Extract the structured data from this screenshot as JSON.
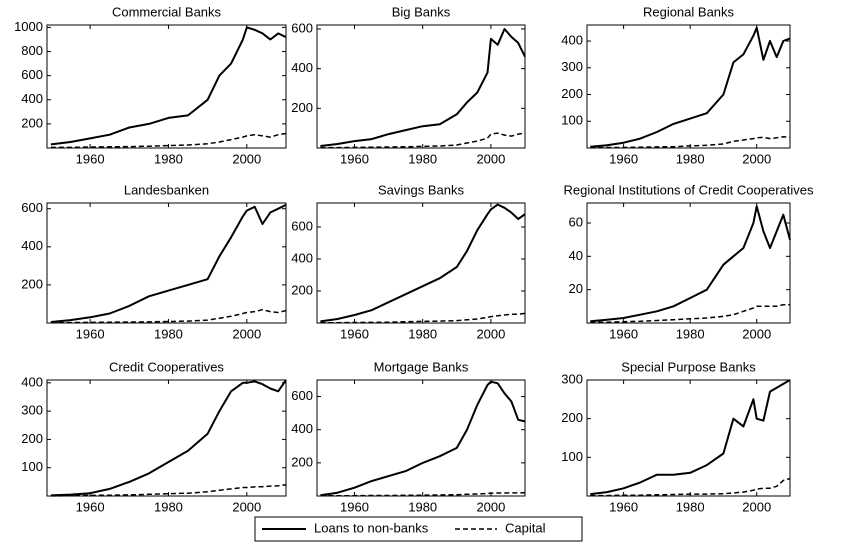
{
  "chart_data": [
    {
      "type": "line",
      "title": "Commercial Banks",
      "x": [
        1950,
        1955,
        1960,
        1965,
        1970,
        1975,
        1980,
        1985,
        1990,
        1993,
        1996,
        1999,
        2000,
        2002,
        2004,
        2006,
        2008,
        2010
      ],
      "xlim": [
        1949,
        2010
      ],
      "xticks": [
        1960,
        1980,
        2000
      ],
      "ylim": [
        0,
        1020
      ],
      "yticks": [
        200,
        400,
        600,
        800,
        1000
      ],
      "series": [
        {
          "name": "Loans to non-banks",
          "color": "#000000",
          "linestyle": "solid",
          "values": [
            30,
            50,
            80,
            110,
            170,
            200,
            250,
            270,
            400,
            600,
            700,
            900,
            1000,
            980,
            950,
            900,
            950,
            920
          ]
        },
        {
          "name": "Capital",
          "color": "#000000",
          "linestyle": "dashed",
          "values": [
            5,
            5,
            8,
            10,
            12,
            15,
            20,
            25,
            35,
            50,
            70,
            90,
            100,
            110,
            100,
            90,
            110,
            120
          ]
        }
      ]
    },
    {
      "type": "line",
      "title": "Big Banks",
      "x": [
        1950,
        1955,
        1960,
        1965,
        1970,
        1975,
        1980,
        1985,
        1990,
        1993,
        1996,
        1999,
        2000,
        2002,
        2004,
        2006,
        2008,
        2010
      ],
      "xlim": [
        1949,
        2010
      ],
      "xticks": [
        1960,
        1980,
        2000
      ],
      "ylim": [
        0,
        620
      ],
      "yticks": [
        200,
        400,
        600
      ],
      "series": [
        {
          "name": "Loans to non-banks",
          "color": "#000000",
          "linestyle": "solid",
          "values": [
            10,
            20,
            35,
            45,
            70,
            90,
            110,
            120,
            170,
            230,
            280,
            380,
            550,
            520,
            600,
            560,
            530,
            460
          ]
        },
        {
          "name": "Capital",
          "color": "#000000",
          "linestyle": "dashed",
          "values": [
            2,
            2,
            3,
            4,
            5,
            6,
            8,
            10,
            15,
            25,
            35,
            50,
            70,
            75,
            65,
            60,
            70,
            75
          ]
        }
      ]
    },
    {
      "type": "line",
      "title": "Regional Banks",
      "x": [
        1950,
        1955,
        1960,
        1965,
        1970,
        1975,
        1980,
        1985,
        1990,
        1993,
        1996,
        1999,
        2000,
        2002,
        2004,
        2006,
        2008,
        2010
      ],
      "xlim": [
        1949,
        2010
      ],
      "xticks": [
        1960,
        1980,
        2000
      ],
      "ylim": [
        0,
        460
      ],
      "yticks": [
        100,
        200,
        300,
        400
      ],
      "series": [
        {
          "name": "Loans to non-banks",
          "color": "#000000",
          "linestyle": "solid",
          "values": [
            5,
            10,
            20,
            35,
            60,
            90,
            110,
            130,
            200,
            320,
            350,
            420,
            450,
            330,
            400,
            340,
            400,
            410
          ]
        },
        {
          "name": "Capital",
          "color": "#000000",
          "linestyle": "dashed",
          "values": [
            1,
            2,
            2,
            3,
            4,
            5,
            8,
            10,
            15,
            25,
            30,
            35,
            38,
            40,
            35,
            38,
            42,
            40
          ]
        }
      ]
    },
    {
      "type": "line",
      "title": "Landesbanken",
      "x": [
        1950,
        1955,
        1960,
        1965,
        1970,
        1975,
        1980,
        1985,
        1990,
        1993,
        1996,
        1999,
        2000,
        2002,
        2004,
        2006,
        2008,
        2010
      ],
      "xlim": [
        1949,
        2010
      ],
      "xticks": [
        1960,
        1980,
        2000
      ],
      "ylim": [
        0,
        630
      ],
      "yticks": [
        200,
        400,
        600
      ],
      "series": [
        {
          "name": "Loans to non-banks",
          "color": "#000000",
          "linestyle": "solid",
          "values": [
            5,
            15,
            30,
            50,
            90,
            140,
            170,
            200,
            230,
            350,
            450,
            560,
            590,
            610,
            520,
            580,
            600,
            620
          ]
        },
        {
          "name": "Capital",
          "color": "#000000",
          "linestyle": "dashed",
          "values": [
            1,
            2,
            3,
            4,
            5,
            6,
            8,
            10,
            15,
            25,
            35,
            50,
            55,
            60,
            70,
            60,
            55,
            65
          ]
        }
      ]
    },
    {
      "type": "line",
      "title": "Savings Banks",
      "x": [
        1950,
        1955,
        1960,
        1965,
        1970,
        1975,
        1980,
        1985,
        1990,
        1993,
        1996,
        1999,
        2000,
        2002,
        2004,
        2006,
        2008,
        2010
      ],
      "xlim": [
        1949,
        2010
      ],
      "xticks": [
        1960,
        1980,
        2000
      ],
      "ylim": [
        0,
        750
      ],
      "yticks": [
        200,
        400,
        600
      ],
      "series": [
        {
          "name": "Loans to non-banks",
          "color": "#000000",
          "linestyle": "solid",
          "values": [
            10,
            25,
            50,
            80,
            130,
            180,
            230,
            280,
            350,
            450,
            580,
            680,
            710,
            740,
            720,
            690,
            650,
            680
          ]
        },
        {
          "name": "Capital",
          "color": "#000000",
          "linestyle": "dashed",
          "values": [
            1,
            2,
            3,
            4,
            5,
            8,
            10,
            12,
            15,
            20,
            25,
            35,
            40,
            45,
            50,
            55,
            55,
            60
          ]
        }
      ]
    },
    {
      "type": "line",
      "title": "Regional Institutions of Credit Cooperatives",
      "x": [
        1950,
        1955,
        1960,
        1965,
        1970,
        1975,
        1980,
        1985,
        1990,
        1993,
        1996,
        1999,
        2000,
        2002,
        2004,
        2006,
        2008,
        2010
      ],
      "xlim": [
        1949,
        2010
      ],
      "xticks": [
        1960,
        1980,
        2000
      ],
      "ylim": [
        0,
        72
      ],
      "yticks": [
        20,
        40,
        60
      ],
      "series": [
        {
          "name": "Loans to non-banks",
          "color": "#000000",
          "linestyle": "solid",
          "values": [
            1,
            2,
            3,
            5,
            7,
            10,
            15,
            20,
            35,
            40,
            45,
            60,
            70,
            55,
            45,
            55,
            65,
            50
          ]
        },
        {
          "name": "Capital",
          "color": "#000000",
          "linestyle": "dashed",
          "values": [
            0.5,
            0.5,
            0.8,
            1,
            1.5,
            2,
            2.5,
            3,
            4,
            5,
            7,
            9,
            10,
            10,
            10,
            10,
            11,
            11
          ]
        }
      ]
    },
    {
      "type": "line",
      "title": "Credit Cooperatives",
      "x": [
        1950,
        1955,
        1960,
        1965,
        1970,
        1975,
        1980,
        1985,
        1990,
        1993,
        1996,
        1999,
        2000,
        2002,
        2004,
        2006,
        2008,
        2010
      ],
      "xlim": [
        1949,
        2010
      ],
      "xticks": [
        1960,
        1980,
        2000
      ],
      "ylim": [
        0,
        410
      ],
      "yticks": [
        100,
        200,
        300,
        400
      ],
      "series": [
        {
          "name": "Loans to non-banks",
          "color": "#000000",
          "linestyle": "solid",
          "values": [
            2,
            5,
            10,
            25,
            50,
            80,
            120,
            160,
            220,
            300,
            370,
            400,
            400,
            405,
            395,
            380,
            370,
            410
          ]
        },
        {
          "name": "Capital",
          "color": "#000000",
          "linestyle": "dashed",
          "values": [
            0.5,
            1,
            2,
            3,
            4,
            6,
            8,
            10,
            15,
            20,
            25,
            30,
            30,
            32,
            33,
            35,
            36,
            40
          ]
        }
      ]
    },
    {
      "type": "line",
      "title": "Mortgage Banks",
      "x": [
        1950,
        1955,
        1960,
        1965,
        1970,
        1975,
        1980,
        1985,
        1990,
        1993,
        1996,
        1999,
        2000,
        2002,
        2004,
        2006,
        2008,
        2010
      ],
      "xlim": [
        1949,
        2010
      ],
      "xticks": [
        1960,
        1980,
        2000
      ],
      "ylim": [
        0,
        700
      ],
      "yticks": [
        200,
        400,
        600
      ],
      "series": [
        {
          "name": "Loans to non-banks",
          "color": "#000000",
          "linestyle": "solid",
          "values": [
            5,
            20,
            50,
            90,
            120,
            150,
            200,
            240,
            290,
            400,
            550,
            670,
            690,
            680,
            620,
            570,
            460,
            450
          ]
        },
        {
          "name": "Capital",
          "color": "#000000",
          "linestyle": "dashed",
          "values": [
            1,
            1,
            2,
            3,
            3,
            4,
            5,
            6,
            8,
            10,
            12,
            15,
            17,
            18,
            18,
            19,
            19,
            20
          ]
        }
      ]
    },
    {
      "type": "line",
      "title": "Special Purpose Banks",
      "x": [
        1950,
        1955,
        1960,
        1965,
        1970,
        1975,
        1980,
        1985,
        1990,
        1993,
        1996,
        1999,
        2000,
        2002,
        2004,
        2006,
        2008,
        2010
      ],
      "xlim": [
        1949,
        2010
      ],
      "xticks": [
        1960,
        1980,
        2000
      ],
      "ylim": [
        0,
        300
      ],
      "yticks": [
        100,
        200,
        300
      ],
      "series": [
        {
          "name": "Loans to non-banks",
          "color": "#000000",
          "linestyle": "solid",
          "values": [
            5,
            10,
            20,
            35,
            55,
            55,
            60,
            80,
            110,
            200,
            180,
            250,
            200,
            195,
            270,
            280,
            290,
            300
          ]
        },
        {
          "name": "Capital",
          "color": "#000000",
          "linestyle": "dashed",
          "values": [
            1,
            1,
            2,
            2,
            3,
            4,
            5,
            5,
            6,
            8,
            10,
            15,
            18,
            20,
            20,
            25,
            40,
            45
          ]
        }
      ]
    }
  ]
}
